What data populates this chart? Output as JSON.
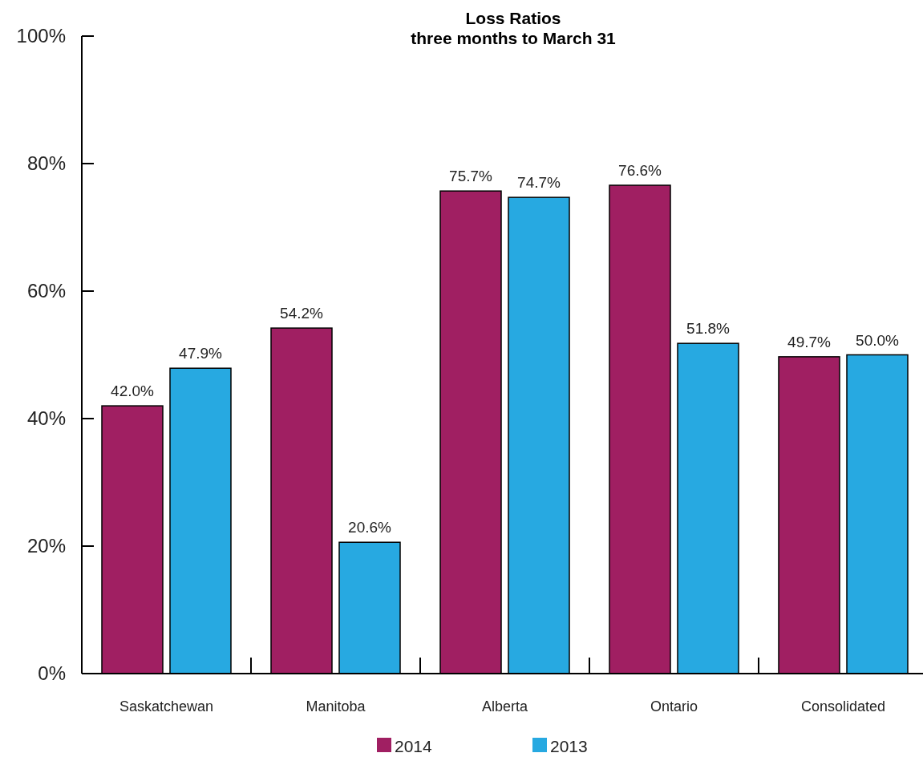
{
  "chart_data": {
    "type": "bar",
    "title": "Loss Ratios\nthree months to March 31",
    "categories": [
      "Saskatchewan",
      "Manitoba",
      "Alberta",
      "Ontario",
      "Consolidated"
    ],
    "series": [
      {
        "name": "2014",
        "color": "#a01f62",
        "values": [
          42.0,
          54.2,
          75.7,
          76.6,
          49.7
        ]
      },
      {
        "name": "2013",
        "color": "#27a9e1",
        "values": [
          47.9,
          20.6,
          74.7,
          51.8,
          50.0
        ]
      }
    ],
    "ylim": [
      0,
      100
    ],
    "yticks": [
      {
        "value": 0,
        "label": "0%"
      },
      {
        "value": 20,
        "label": "20%"
      },
      {
        "value": 40,
        "label": "40%"
      },
      {
        "value": 60,
        "label": "60%"
      },
      {
        "value": 80,
        "label": "80%"
      },
      {
        "value": 100,
        "label": "100%"
      }
    ],
    "value_labels": [
      [
        "42.0%",
        "54.2%",
        "75.7%",
        "76.6%",
        "49.7%"
      ],
      [
        "47.9%",
        "20.6%",
        "74.7%",
        "51.8%",
        "50.0%"
      ]
    ],
    "grid": false,
    "legend": "bottom"
  }
}
